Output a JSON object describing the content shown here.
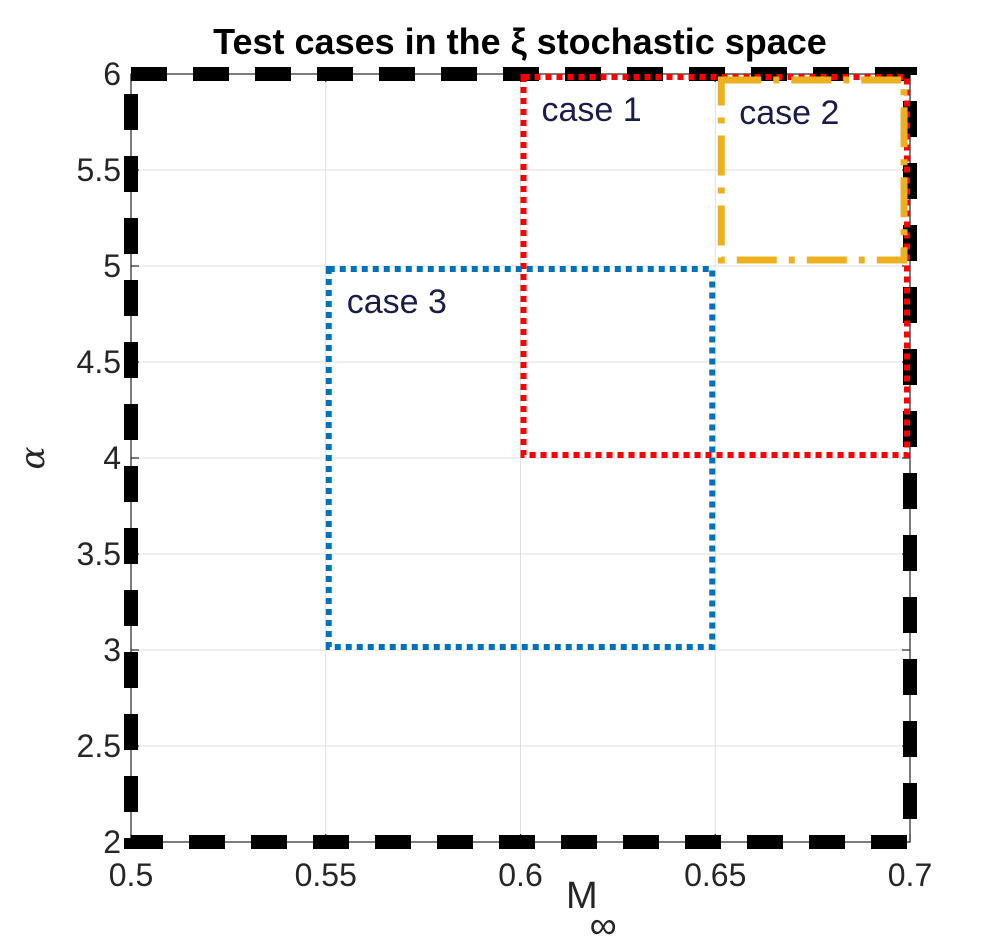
{
  "chart_data": {
    "type": "rectangles",
    "title": "Test cases in the ξ stochastic space",
    "xlabel": "M∞",
    "ylabel": "α",
    "xlim": [
      0.5,
      0.7
    ],
    "ylim": [
      2,
      6
    ],
    "xticks": [
      "0.5",
      "0.55",
      "0.6",
      "0.65",
      "0.7"
    ],
    "yticks": [
      "2",
      "2.5",
      "3",
      "3.5",
      "4",
      "4.5",
      "5",
      "5.5",
      "6"
    ],
    "xtick_values": [
      0.5,
      0.55,
      0.6,
      0.65,
      0.7
    ],
    "ytick_values": [
      2,
      2.5,
      3,
      3.5,
      4,
      4.5,
      5,
      5.5,
      6
    ],
    "grid": true,
    "boxes": [
      {
        "label": "",
        "x0": 0.5,
        "x1": 0.7,
        "y0": 2,
        "y1": 6,
        "color": "#000000",
        "style": "dashed-thick"
      },
      {
        "label": "case 1",
        "x0": 0.6,
        "x1": 0.7,
        "y0": 4,
        "y1": 6,
        "color": "#ff0000",
        "style": "dotted"
      },
      {
        "label": "case 2",
        "x0": 0.65,
        "x1": 0.7,
        "y0": 5,
        "y1": 6,
        "color": "#edb120",
        "style": "dash-dot"
      },
      {
        "label": "case 3",
        "x0": 0.55,
        "x1": 0.65,
        "y0": 3,
        "y1": 5,
        "color": "#0072bd",
        "style": "dotted"
      }
    ]
  }
}
